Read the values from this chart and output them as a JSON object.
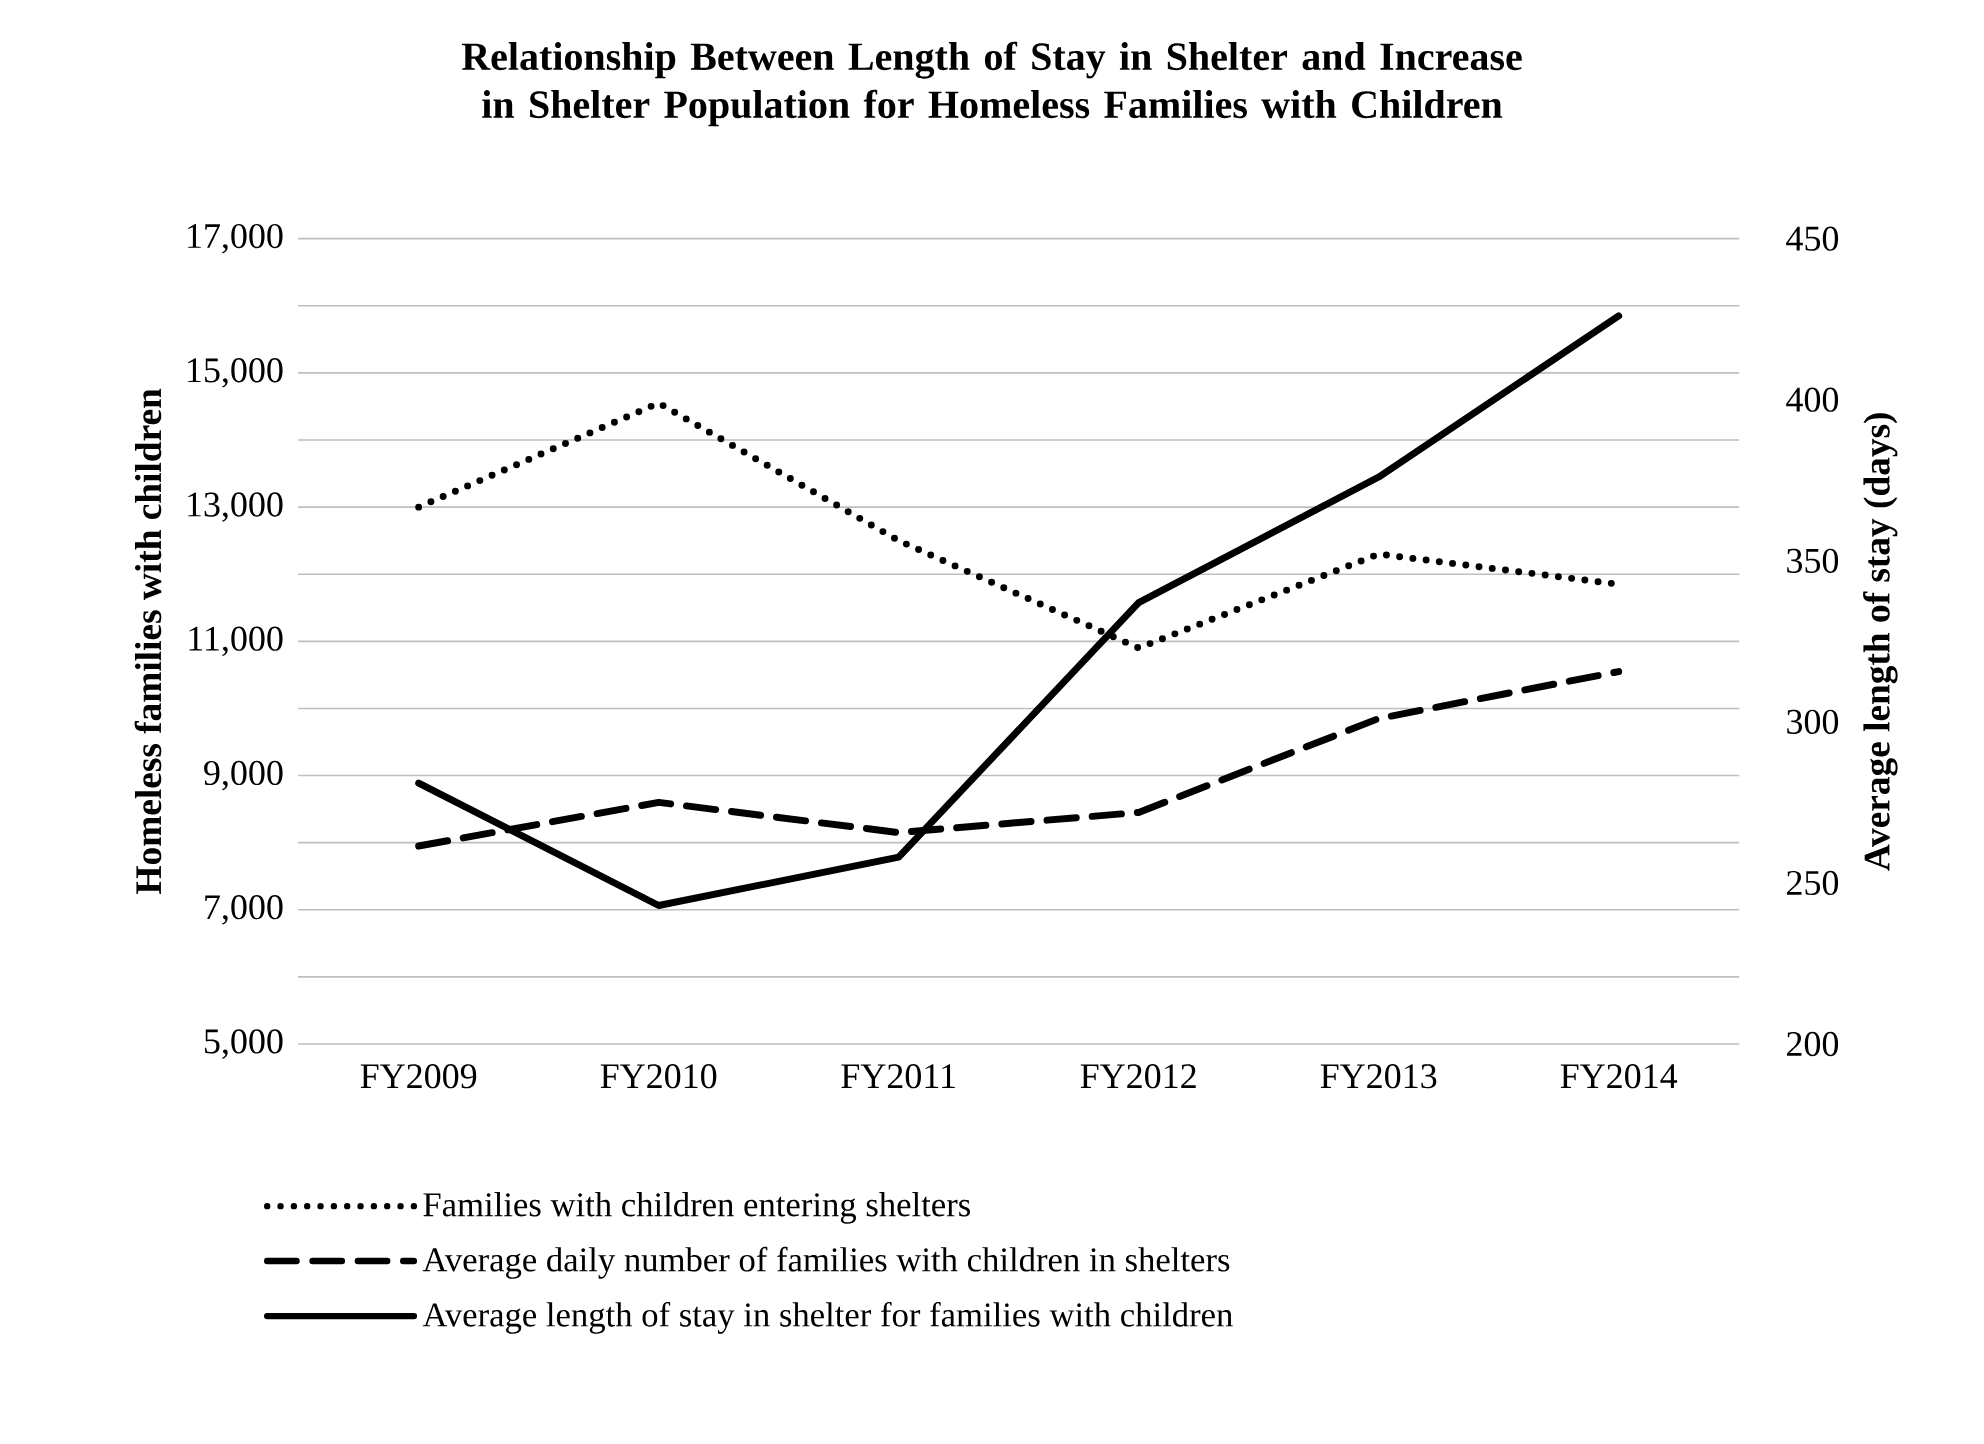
{
  "chart_data": {
    "type": "line",
    "title": "Relationship Between Length of Stay in Shelter and Increase in Shelter Population for Homeless Families with Children",
    "ylabel": "Homeless families with children",
    "y2label": "Average length of stay (days)",
    "categories": [
      "FY2009",
      "FY2010",
      "FY2011",
      "FY2012",
      "FY2013",
      "FY2014"
    ],
    "series": [
      {
        "name": "Families with children entering shelters",
        "color": "#000000",
        "line_style": "dotted",
        "values": [
          13000,
          14550,
          12500,
          10900,
          12300,
          11850
        ]
      },
      {
        "name": "Average daily number of families with children in shelters",
        "color": "#000000",
        "line_style": "dashed",
        "values": [
          7950,
          8600,
          8150,
          8450,
          9850,
          10550
        ]
      },
      {
        "name": "Average length of stay in shelter for families with children",
        "color": "#000000",
        "line_style": "solid",
        "axis": "y2",
        "values": [
          281,
          243,
          258,
          337,
          376,
          426
        ]
      }
    ],
    "ylim": [
      5000,
      17000
    ],
    "yticks": [
      {
        "value": 5000,
        "label": "5,000"
      },
      {
        "value": 6000,
        "label": null
      },
      {
        "value": 7000,
        "label": "7,000"
      },
      {
        "value": 8000,
        "label": null
      },
      {
        "value": 9000,
        "label": "9,000"
      },
      {
        "value": 10000,
        "label": null
      },
      {
        "value": 11000,
        "label": "11,000"
      },
      {
        "value": 12000,
        "label": null
      },
      {
        "value": 13000,
        "label": "13,000"
      },
      {
        "value": 14000,
        "label": null
      },
      {
        "value": 15000,
        "label": "15,000"
      },
      {
        "value": 16000,
        "label": null
      },
      {
        "value": 17000,
        "label": "17,000"
      }
    ],
    "y2lim": [
      200,
      450
    ],
    "y2ticks": [
      200,
      250,
      300,
      350,
      400,
      450
    ],
    "grid": "y",
    "legend": "bottom"
  }
}
